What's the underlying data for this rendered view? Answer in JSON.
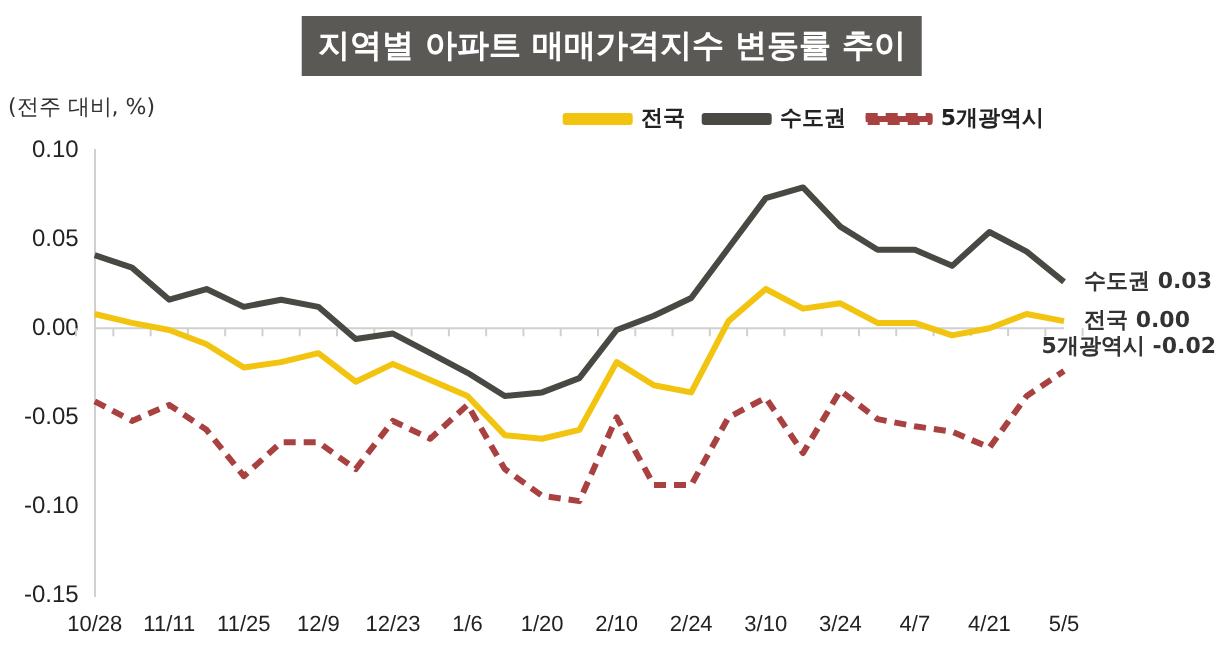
{
  "chart_data": {
    "type": "line",
    "title": "지역별 아파트 매매가격지수 변동률 추이",
    "ylabel": "(전주 대비, %)",
    "categories": [
      "10/28",
      null,
      "11/11",
      null,
      "11/25",
      null,
      "12/9",
      null,
      "12/23",
      null,
      "1/6",
      null,
      "1/20",
      null,
      "2/10",
      null,
      "2/24",
      null,
      "3/10",
      null,
      "3/24",
      null,
      "4/7",
      null,
      "4/21",
      null,
      "5/5"
    ],
    "series": [
      {
        "name": "전국",
        "color": "#f2c40f",
        "line_style": "solid",
        "values": [
          0.008,
          0.003,
          -0.001,
          -0.009,
          -0.022,
          -0.019,
          -0.014,
          -0.03,
          -0.02,
          -0.029,
          -0.038,
          -0.06,
          -0.062,
          -0.057,
          -0.019,
          -0.032,
          -0.036,
          0.004,
          0.022,
          0.011,
          0.014,
          0.003,
          0.003,
          -0.004,
          0.0,
          0.008,
          0.004
        ]
      },
      {
        "name": "수도권",
        "color": "#4a4843",
        "line_style": "solid",
        "values": [
          0.041,
          0.034,
          0.016,
          0.022,
          0.012,
          0.016,
          0.012,
          -0.006,
          -0.003,
          -0.014,
          -0.025,
          -0.038,
          -0.036,
          -0.028,
          -0.001,
          0.007,
          0.017,
          0.045,
          0.073,
          0.079,
          0.057,
          0.044,
          0.044,
          0.035,
          0.054,
          0.043,
          0.026
        ]
      },
      {
        "name": "5개광역시",
        "color": "#a8413f",
        "line_style": "dashed",
        "values": [
          -0.041,
          -0.052,
          -0.043,
          -0.057,
          -0.083,
          -0.064,
          -0.064,
          -0.079,
          -0.052,
          -0.062,
          -0.043,
          -0.079,
          -0.094,
          -0.097,
          -0.05,
          -0.088,
          -0.088,
          -0.05,
          -0.039,
          -0.07,
          -0.035,
          -0.051,
          -0.055,
          -0.058,
          -0.067,
          -0.038,
          -0.024
        ]
      }
    ],
    "annotations": [
      {
        "text": "수도권 0.03",
        "x": "5/5",
        "y": 0.026
      },
      {
        "text": "전국 0.00",
        "x": "5/5",
        "y": 0.004
      },
      {
        "text": "5개광역시 -0.02",
        "x": "5/5",
        "y": -0.024
      }
    ],
    "ylim": [
      -0.15,
      0.1
    ],
    "yticks": [
      {
        "value": -0.15,
        "label": "-0.15"
      },
      {
        "value": -0.1,
        "label": "-0.10"
      },
      {
        "value": -0.05,
        "label": "-0.05"
      },
      {
        "value": 0,
        "label": "0.00"
      },
      {
        "value": 0.05,
        "label": "0.05"
      },
      {
        "value": 0.1,
        "label": "0.10"
      }
    ],
    "ref_lines": [
      {
        "axis": "y",
        "value": 0,
        "color": "#d0d0d0"
      }
    ],
    "grid": false,
    "legend": "top",
    "marker": "none"
  }
}
